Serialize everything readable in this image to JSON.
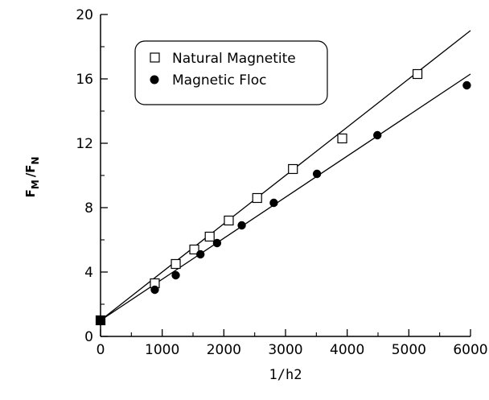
{
  "chart_data": {
    "type": "scatter",
    "xlabel": "1/h2",
    "ylabel": {
      "f1": "F",
      "s1": "M",
      "sep": "/",
      "f2": "F",
      "s2": "N"
    },
    "xlim": [
      0,
      6000
    ],
    "ylim": [
      0,
      20
    ],
    "xticks": [
      0,
      1000,
      2000,
      3000,
      4000,
      5000,
      6000
    ],
    "yticks": [
      0,
      4,
      8,
      12,
      16,
      20
    ],
    "grid": false,
    "legend_position": "top-left",
    "series": [
      {
        "name": "Natural Magnetite",
        "marker": "open-square",
        "x": [
          0,
          880,
          1220,
          1520,
          1770,
          2080,
          2540,
          3120,
          3920,
          5140
        ],
        "y": [
          1.0,
          3.3,
          4.5,
          5.4,
          6.2,
          7.2,
          8.6,
          10.4,
          12.3,
          16.3
        ],
        "fit": {
          "x": [
            0,
            6000
          ],
          "y": [
            1.0,
            19.0
          ]
        }
      },
      {
        "name": "Magnetic Floc",
        "marker": "filled-circle",
        "x": [
          0,
          880,
          1220,
          1620,
          1890,
          2290,
          2810,
          3510,
          4490,
          5940
        ],
        "y": [
          1.0,
          2.9,
          3.8,
          5.1,
          5.8,
          6.9,
          8.3,
          10.1,
          12.5,
          15.6
        ],
        "fit": {
          "x": [
            0,
            6000
          ],
          "y": [
            1.0,
            16.3
          ]
        }
      }
    ]
  }
}
